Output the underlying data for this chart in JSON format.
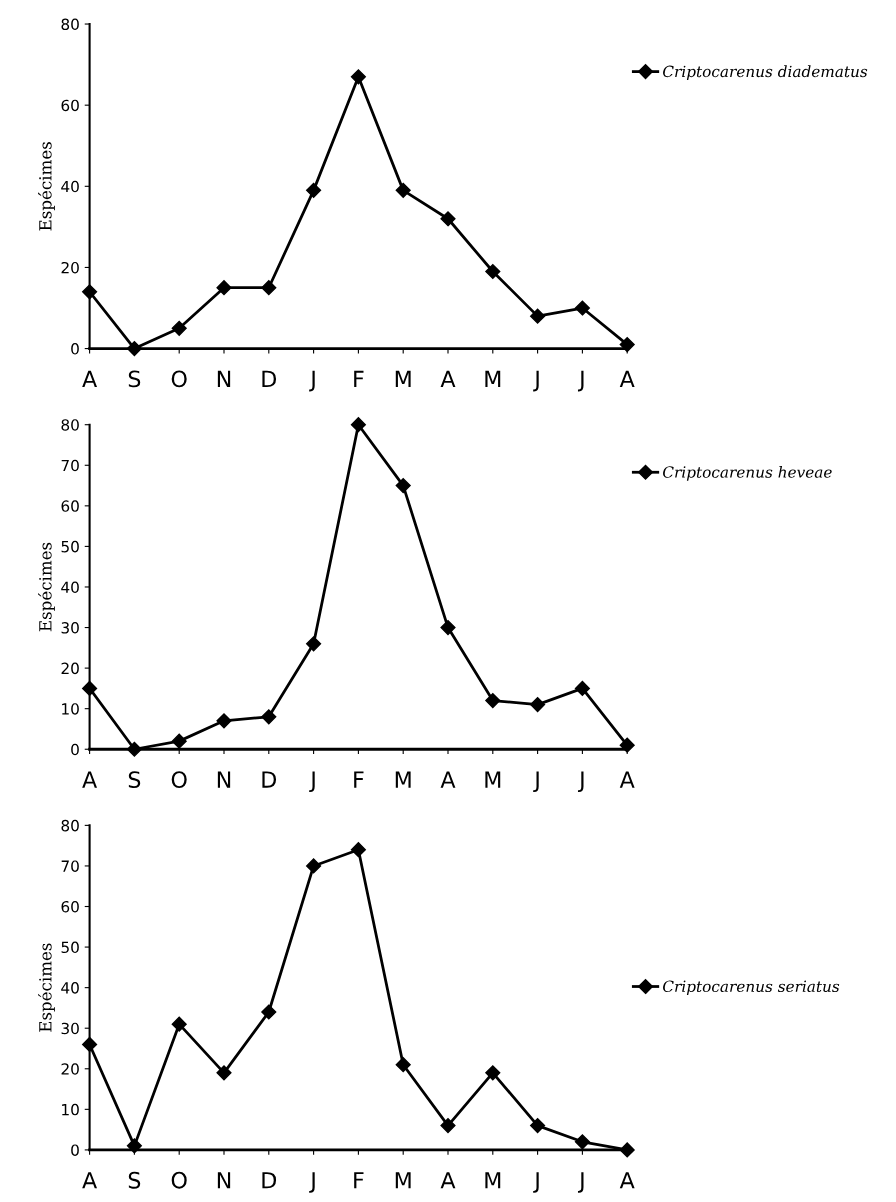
{
  "chart_data": [
    {
      "type": "line",
      "ylabel": "Espécimes",
      "categories": [
        "A",
        "S",
        "O",
        "N",
        "D",
        "J",
        "F",
        "M",
        "A",
        "M",
        "J",
        "J",
        "A"
      ],
      "ylim": [
        0,
        80
      ],
      "yticks": [
        0,
        20,
        40,
        60,
        80
      ],
      "marker": "diamond",
      "line_style": "solid",
      "legend": "top right",
      "grid": false,
      "series": [
        {
          "name": "Criptocarenus diadematus",
          "color": "#000000",
          "values": [
            14,
            0,
            5,
            15,
            15,
            39,
            67,
            39,
            32,
            19,
            8,
            10,
            1
          ]
        }
      ]
    },
    {
      "type": "line",
      "ylabel": "Espécimes",
      "categories": [
        "A",
        "S",
        "O",
        "N",
        "D",
        "J",
        "F",
        "M",
        "A",
        "M",
        "J",
        "J",
        "A"
      ],
      "ylim": [
        0,
        80
      ],
      "yticks": [
        0,
        10,
        20,
        30,
        40,
        50,
        60,
        70,
        80
      ],
      "marker": "diamond",
      "line_style": "solid",
      "legend": "top right",
      "grid": false,
      "series": [
        {
          "name": "Criptocarenus heveae",
          "color": "#000000",
          "values": [
            15,
            0,
            2,
            7,
            8,
            26,
            80,
            65,
            30,
            12,
            11,
            15,
            1
          ]
        }
      ]
    },
    {
      "type": "line",
      "ylabel": "Espécimes",
      "categories": [
        "A",
        "S",
        "O",
        "N",
        "D",
        "J",
        "F",
        "M",
        "A",
        "M",
        "J",
        "J",
        "A"
      ],
      "ylim": [
        0,
        80
      ],
      "yticks": [
        0,
        10,
        20,
        30,
        40,
        50,
        60,
        70,
        80
      ],
      "marker": "diamond",
      "line_style": "solid",
      "legend": "right",
      "grid": false,
      "series": [
        {
          "name": "Criptocarenus seriatus",
          "color": "#000000",
          "values": [
            26,
            1,
            31,
            19,
            34,
            70,
            74,
            21,
            6,
            19,
            6,
            2,
            0
          ]
        }
      ]
    }
  ]
}
